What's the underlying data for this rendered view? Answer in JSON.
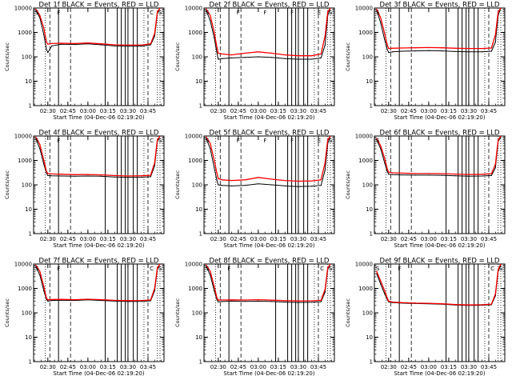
{
  "chart_data": [
    {
      "type": "line",
      "title": "Det 1f BLACK = Events, RED = LLD",
      "xlabel": "Start Time (04-Dec-06 02:19:20)",
      "ylabel": "Counts/sec",
      "yscale": "log",
      "ylim": [
        1,
        10000
      ],
      "xlim": [
        "02:19:20",
        "03:57:00"
      ],
      "xticks": [
        "02:30",
        "02:45",
        "03:00",
        "03:15",
        "03:30",
        "03:45"
      ],
      "yticks": [
        "1",
        "10",
        "100",
        "1000",
        "10000"
      ],
      "series": [
        {
          "name": "Events",
          "color": "#000000",
          "x": [
            "02:21",
            "02:24",
            "02:27",
            "02:29",
            "02:30",
            "02:33",
            "02:40",
            "02:50",
            "03:00",
            "03:10",
            "03:20",
            "03:30",
            "03:40",
            "03:47",
            "03:50",
            "03:52",
            "03:54"
          ],
          "y": [
            8000,
            4000,
            800,
            200,
            150,
            280,
            330,
            320,
            340,
            310,
            280,
            270,
            270,
            310,
            700,
            6000,
            10000
          ]
        },
        {
          "name": "LLD",
          "color": "#ff0000",
          "x": [
            "02:21",
            "02:24",
            "02:27",
            "02:29",
            "02:30",
            "02:33",
            "02:40",
            "02:50",
            "03:00",
            "03:10",
            "03:20",
            "03:30",
            "03:40",
            "03:47",
            "03:50",
            "03:52",
            "03:54"
          ],
          "y": [
            9000,
            5000,
            1500,
            400,
            330,
            350,
            360,
            350,
            370,
            340,
            310,
            300,
            300,
            340,
            900,
            7000,
            10000
          ]
        }
      ],
      "flags": [
        "S",
        "F",
        "C",
        "S"
      ]
    },
    {
      "type": "line",
      "title": "Det 2f BLACK = Events, RED = LLD",
      "xlabel": "Start Time (04-Dec-06 02:19:20)",
      "ylabel": "Counts/sec",
      "yscale": "log",
      "ylim": [
        1,
        10000
      ],
      "xlim": [
        "02:19:20",
        "03:57:00"
      ],
      "xticks": [
        "02:30",
        "02:45",
        "03:00",
        "03:15",
        "03:30",
        "03:45"
      ],
      "yticks": [
        "1",
        "10",
        "100",
        "1000",
        "10000"
      ],
      "series": [
        {
          "name": "Events",
          "color": "#000000",
          "x": [
            "02:21",
            "02:24",
            "02:27",
            "02:29",
            "02:30",
            "02:33",
            "02:40",
            "02:50",
            "03:00",
            "03:10",
            "03:20",
            "03:30",
            "03:40",
            "03:47",
            "03:50",
            "03:52",
            "03:54"
          ],
          "y": [
            8000,
            3000,
            600,
            150,
            80,
            85,
            90,
            95,
            100,
            95,
            85,
            80,
            80,
            90,
            300,
            5000,
            10000
          ]
        },
        {
          "name": "LLD",
          "color": "#ff0000",
          "x": [
            "02:21",
            "02:24",
            "02:27",
            "02:29",
            "02:30",
            "02:33",
            "02:40",
            "02:50",
            "03:00",
            "03:10",
            "03:20",
            "03:30",
            "03:40",
            "03:47",
            "03:50",
            "03:52",
            "03:54"
          ],
          "y": [
            9000,
            5000,
            1000,
            250,
            140,
            130,
            120,
            140,
            160,
            140,
            120,
            110,
            110,
            130,
            700,
            7000,
            10000
          ]
        }
      ],
      "flags": [
        "S",
        "F",
        "F",
        "F",
        "E",
        "S"
      ]
    },
    {
      "type": "line",
      "title": "Det 3f BLACK = Events, RED = LLD",
      "xlabel": "Start Time (04-Dec-06 02:19:20)",
      "ylabel": "Counts/sec",
      "yscale": "log",
      "ylim": [
        1,
        10000
      ],
      "xlim": [
        "02:19:20",
        "03:57:00"
      ],
      "xticks": [
        "02:30",
        "02:45",
        "03:00",
        "03:15",
        "03:30",
        "03:45"
      ],
      "yticks": [
        "1",
        "10",
        "100",
        "1000",
        "10000"
      ],
      "series": [
        {
          "name": "Events",
          "color": "#000000",
          "x": [
            "02:21",
            "02:24",
            "02:27",
            "02:29",
            "02:30",
            "02:33",
            "02:40",
            "02:50",
            "03:00",
            "03:10",
            "03:20",
            "03:30",
            "03:40",
            "03:47",
            "03:50",
            "03:52",
            "03:54"
          ],
          "y": [
            8000,
            2500,
            500,
            200,
            150,
            160,
            170,
            175,
            180,
            175,
            165,
            160,
            160,
            170,
            400,
            5000,
            10000
          ]
        },
        {
          "name": "LLD",
          "color": "#ff0000",
          "x": [
            "02:21",
            "02:24",
            "02:27",
            "02:29",
            "02:30",
            "02:33",
            "02:40",
            "02:50",
            "03:00",
            "03:10",
            "03:20",
            "03:30",
            "03:40",
            "03:47",
            "03:50",
            "03:52",
            "03:54"
          ],
          "y": [
            9000,
            4000,
            900,
            300,
            220,
            225,
            230,
            235,
            240,
            235,
            225,
            220,
            220,
            230,
            800,
            7000,
            10000
          ]
        }
      ],
      "flags": [
        "S"
      ]
    },
    {
      "type": "line",
      "title": "Det 4f BLACK = Events, RED = LLD",
      "xlabel": "Start Time (04-Dec-06 02:19:20)",
      "ylabel": "Counts/sec",
      "yscale": "log",
      "ylim": [
        1,
        10000
      ],
      "xlim": [
        "02:19:20",
        "03:57:00"
      ],
      "xticks": [
        "02:30",
        "02:45",
        "03:00",
        "03:15",
        "03:30",
        "03:45"
      ],
      "yticks": [
        "1",
        "10",
        "100",
        "1000",
        "10000"
      ],
      "series": [
        {
          "name": "Events",
          "color": "#000000",
          "x": [
            "02:21",
            "02:24",
            "02:27",
            "02:29",
            "02:30",
            "02:33",
            "02:40",
            "02:50",
            "03:00",
            "03:10",
            "03:20",
            "03:30",
            "03:40",
            "03:47",
            "03:50",
            "03:52",
            "03:54"
          ],
          "y": [
            8000,
            3000,
            700,
            300,
            240,
            235,
            230,
            225,
            230,
            225,
            210,
            200,
            205,
            215,
            600,
            6000,
            10000
          ]
        },
        {
          "name": "LLD",
          "color": "#ff0000",
          "x": [
            "02:21",
            "02:24",
            "02:27",
            "02:29",
            "02:30",
            "02:33",
            "02:40",
            "02:50",
            "03:00",
            "03:10",
            "03:20",
            "03:30",
            "03:40",
            "03:47",
            "03:50",
            "03:52",
            "03:54"
          ],
          "y": [
            9000,
            4500,
            1000,
            350,
            290,
            280,
            270,
            260,
            265,
            255,
            240,
            230,
            235,
            245,
            800,
            7000,
            10000
          ]
        }
      ],
      "flags": [
        "S",
        "F",
        "C",
        "S"
      ]
    },
    {
      "type": "line",
      "title": "Det 5f BLACK = Events, RED = LLD",
      "xlabel": "Start Time (04-Dec-06 02:19:20)",
      "ylabel": "Counts/sec",
      "yscale": "log",
      "ylim": [
        1,
        10000
      ],
      "xlim": [
        "02:19:20",
        "03:57:00"
      ],
      "xticks": [
        "02:30",
        "02:45",
        "03:00",
        "03:15",
        "03:30",
        "03:45"
      ],
      "yticks": [
        "1",
        "10",
        "100",
        "1000",
        "10000"
      ],
      "series": [
        {
          "name": "Events",
          "color": "#000000",
          "x": [
            "02:21",
            "02:24",
            "02:27",
            "02:29",
            "02:30",
            "02:33",
            "02:40",
            "02:50",
            "03:00",
            "03:10",
            "03:20",
            "03:30",
            "03:40",
            "03:47",
            "03:50",
            "03:52",
            "03:54"
          ],
          "y": [
            8000,
            3000,
            500,
            150,
            100,
            95,
            90,
            95,
            110,
            100,
            90,
            85,
            88,
            95,
            400,
            5000,
            10000
          ]
        },
        {
          "name": "LLD",
          "color": "#ff0000",
          "x": [
            "02:21",
            "02:24",
            "02:27",
            "02:29",
            "02:30",
            "02:33",
            "02:40",
            "02:50",
            "03:00",
            "03:10",
            "03:20",
            "03:30",
            "03:40",
            "03:47",
            "03:50",
            "03:52",
            "03:54"
          ],
          "y": [
            9000,
            5000,
            1000,
            300,
            180,
            160,
            150,
            160,
            200,
            170,
            150,
            140,
            145,
            160,
            800,
            7000,
            10000
          ]
        }
      ],
      "flags": [
        "S",
        "F",
        "F",
        "F",
        "E",
        "S"
      ]
    },
    {
      "type": "line",
      "title": "Det 6f BLACK = Events, RED = LLD",
      "xlabel": "Start Time (04-Dec-06 02:19:20)",
      "ylabel": "Counts/sec",
      "yscale": "log",
      "ylim": [
        1,
        10000
      ],
      "xlim": [
        "02:19:20",
        "03:57:00"
      ],
      "xticks": [
        "02:30",
        "02:45",
        "03:00",
        "03:15",
        "03:30",
        "03:45"
      ],
      "yticks": [
        "1",
        "10",
        "100",
        "1000",
        "10000"
      ],
      "series": [
        {
          "name": "Events",
          "color": "#000000",
          "x": [
            "02:21",
            "02:24",
            "02:27",
            "02:29",
            "02:30",
            "02:33",
            "02:40",
            "02:50",
            "03:00",
            "03:10",
            "03:20",
            "03:30",
            "03:40",
            "03:47",
            "03:50",
            "03:52",
            "03:54"
          ],
          "y": [
            7000,
            3000,
            800,
            350,
            270,
            260,
            255,
            250,
            250,
            245,
            235,
            225,
            230,
            240,
            500,
            6000,
            9000
          ]
        },
        {
          "name": "LLD",
          "color": "#ff0000",
          "x": [
            "02:21",
            "02:24",
            "02:27",
            "02:29",
            "02:30",
            "02:33",
            "02:40",
            "02:50",
            "03:00",
            "03:10",
            "03:20",
            "03:30",
            "03:40",
            "03:47",
            "03:50",
            "03:52",
            "03:54"
          ],
          "y": [
            8000,
            4000,
            1200,
            450,
            330,
            310,
            300,
            290,
            290,
            285,
            275,
            265,
            270,
            285,
            700,
            7000,
            10000
          ]
        }
      ],
      "flags": [
        "S"
      ]
    },
    {
      "type": "line",
      "title": "Det 7f BLACK = Events, RED = LLD",
      "xlabel": "Start Time (04-Dec-06 02:19:20)",
      "ylabel": "Counts/sec",
      "yscale": "log",
      "ylim": [
        1,
        10000
      ],
      "xlim": [
        "02:19:20",
        "03:57:00"
      ],
      "xticks": [
        "02:30",
        "02:45",
        "03:00",
        "03:15",
        "03:30",
        "03:45"
      ],
      "yticks": [
        "1",
        "10",
        "100",
        "1000",
        "10000"
      ],
      "series": [
        {
          "name": "Events",
          "color": "#000000",
          "x": [
            "02:21",
            "02:24",
            "02:27",
            "02:29",
            "02:30",
            "02:33",
            "02:40",
            "02:50",
            "03:00",
            "03:10",
            "03:20",
            "03:30",
            "03:40",
            "03:47",
            "03:50",
            "03:52",
            "03:54"
          ],
          "y": [
            8000,
            3500,
            800,
            350,
            300,
            320,
            330,
            320,
            340,
            320,
            300,
            290,
            295,
            310,
            800,
            6000,
            10000
          ]
        },
        {
          "name": "LLD",
          "color": "#ff0000",
          "x": [
            "02:21",
            "02:24",
            "02:27",
            "02:29",
            "02:30",
            "02:33",
            "02:40",
            "02:50",
            "03:00",
            "03:10",
            "03:20",
            "03:30",
            "03:40",
            "03:47",
            "03:50",
            "03:52",
            "03:54"
          ],
          "y": [
            9000,
            5000,
            1200,
            400,
            340,
            350,
            355,
            345,
            360,
            345,
            325,
            315,
            320,
            335,
            1000,
            7000,
            10000
          ]
        }
      ],
      "flags": [
        "S",
        "F",
        "C",
        "S"
      ]
    },
    {
      "type": "line",
      "title": "Det 8f BLACK = Events, RED = LLD",
      "xlabel": "Start Time (04-Dec-06 02:19:20)",
      "ylabel": "Counts/sec",
      "yscale": "log",
      "ylim": [
        1,
        10000
      ],
      "xlim": [
        "02:19:20",
        "03:57:00"
      ],
      "xticks": [
        "02:30",
        "02:45",
        "03:00",
        "03:15",
        "03:30",
        "03:45"
      ],
      "yticks": [
        "1",
        "10",
        "100",
        "1000",
        "10000"
      ],
      "series": [
        {
          "name": "Events",
          "color": "#000000",
          "x": [
            "02:21",
            "02:24",
            "02:27",
            "02:29",
            "02:30",
            "02:33",
            "02:40",
            "02:50",
            "03:00",
            "03:10",
            "03:20",
            "03:30",
            "03:40",
            "03:47",
            "03:50",
            "03:52",
            "03:54"
          ],
          "y": [
            8000,
            3500,
            800,
            350,
            280,
            290,
            300,
            295,
            300,
            290,
            275,
            265,
            270,
            285,
            700,
            6000,
            10000
          ]
        },
        {
          "name": "LLD",
          "color": "#ff0000",
          "x": [
            "02:21",
            "02:24",
            "02:27",
            "02:29",
            "02:30",
            "02:33",
            "02:40",
            "02:50",
            "03:00",
            "03:10",
            "03:20",
            "03:30",
            "03:40",
            "03:47",
            "03:50",
            "03:52",
            "03:54"
          ],
          "y": [
            9000,
            5000,
            1200,
            420,
            330,
            335,
            340,
            335,
            345,
            330,
            315,
            305,
            310,
            325,
            900,
            7000,
            10000
          ]
        }
      ],
      "flags": [
        "S",
        "F",
        "C",
        "S"
      ]
    },
    {
      "type": "line",
      "title": "Det 9f BLACK = Events, RED = LLD",
      "xlabel": "Start Time (04-Dec-06 02:19:20)",
      "ylabel": "Counts/sec",
      "yscale": "log",
      "ylim": [
        1,
        10000
      ],
      "xlim": [
        "02:19:20",
        "03:57:00"
      ],
      "xticks": [
        "02:30",
        "02:45",
        "03:00",
        "03:15",
        "03:30",
        "03:45"
      ],
      "yticks": [
        "1",
        "10",
        "100",
        "1000",
        "10000"
      ],
      "series": [
        {
          "name": "Events",
          "color": "#000000",
          "x": [
            "02:21",
            "02:24",
            "02:27",
            "02:29",
            "02:30",
            "02:33",
            "02:40",
            "02:50",
            "03:00",
            "03:10",
            "03:20",
            "03:30",
            "03:40",
            "03:47",
            "03:50",
            "03:52",
            "03:54"
          ],
          "y": [
            4000,
            1500,
            600,
            350,
            280,
            260,
            250,
            240,
            235,
            225,
            210,
            200,
            205,
            215,
            500,
            5000,
            9000
          ]
        },
        {
          "name": "LLD",
          "color": "#ff0000",
          "x": [
            "02:21",
            "02:24",
            "02:27",
            "02:29",
            "02:30",
            "02:33",
            "02:40",
            "02:50",
            "03:00",
            "03:10",
            "03:20",
            "03:30",
            "03:40",
            "03:47",
            "03:50",
            "03:52",
            "03:54"
          ],
          "y": [
            5000,
            2000,
            800,
            400,
            300,
            275,
            260,
            250,
            245,
            235,
            220,
            210,
            215,
            225,
            600,
            6000,
            10000
          ]
        }
      ],
      "flags": [
        "S",
        "F",
        "C",
        "S"
      ]
    }
  ]
}
